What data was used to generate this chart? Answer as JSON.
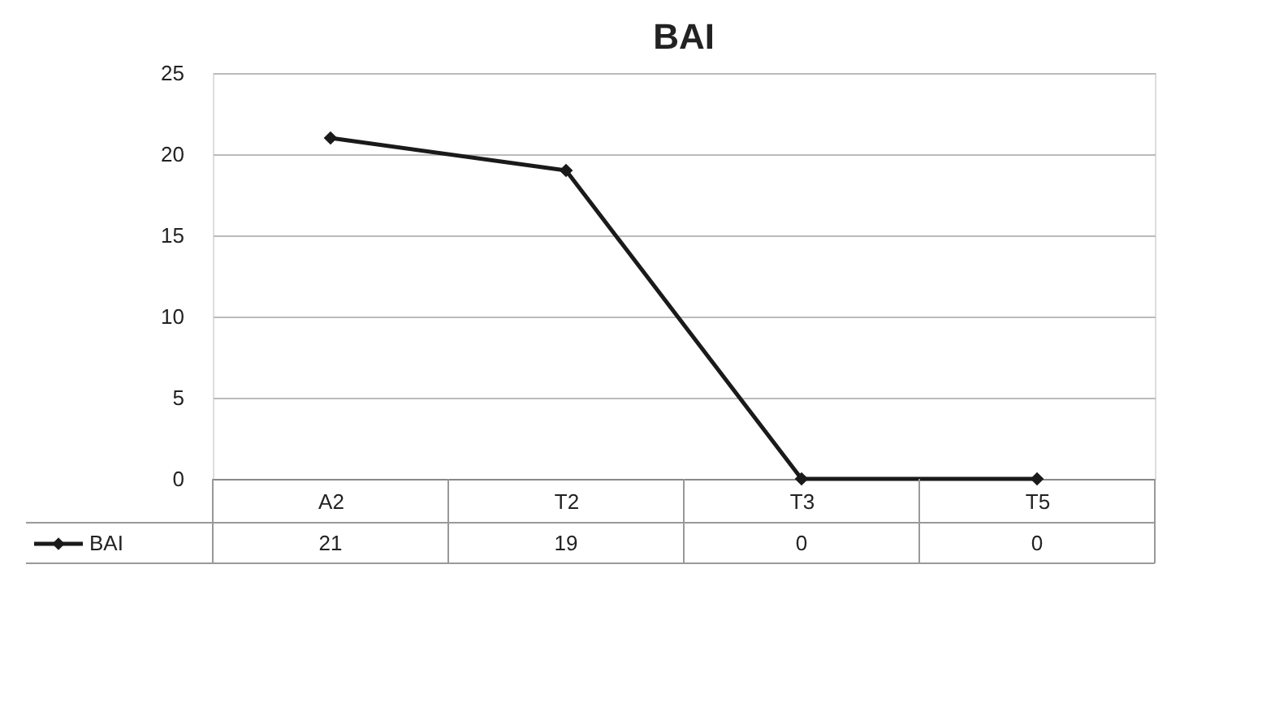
{
  "chart_data": {
    "type": "line",
    "title": "BAI",
    "categories": [
      "A2",
      "T2",
      "T3",
      "T5"
    ],
    "series": [
      {
        "name": "BAI",
        "color": "#1a1a1a",
        "values": [
          21,
          19,
          0,
          0
        ]
      }
    ],
    "ylim": [
      0,
      25
    ],
    "yticks": [
      0,
      5,
      10,
      15,
      20,
      25
    ],
    "grid": "y",
    "marker": "diamond",
    "line_style": "solid",
    "data_labels": true,
    "legend": "bottom"
  }
}
